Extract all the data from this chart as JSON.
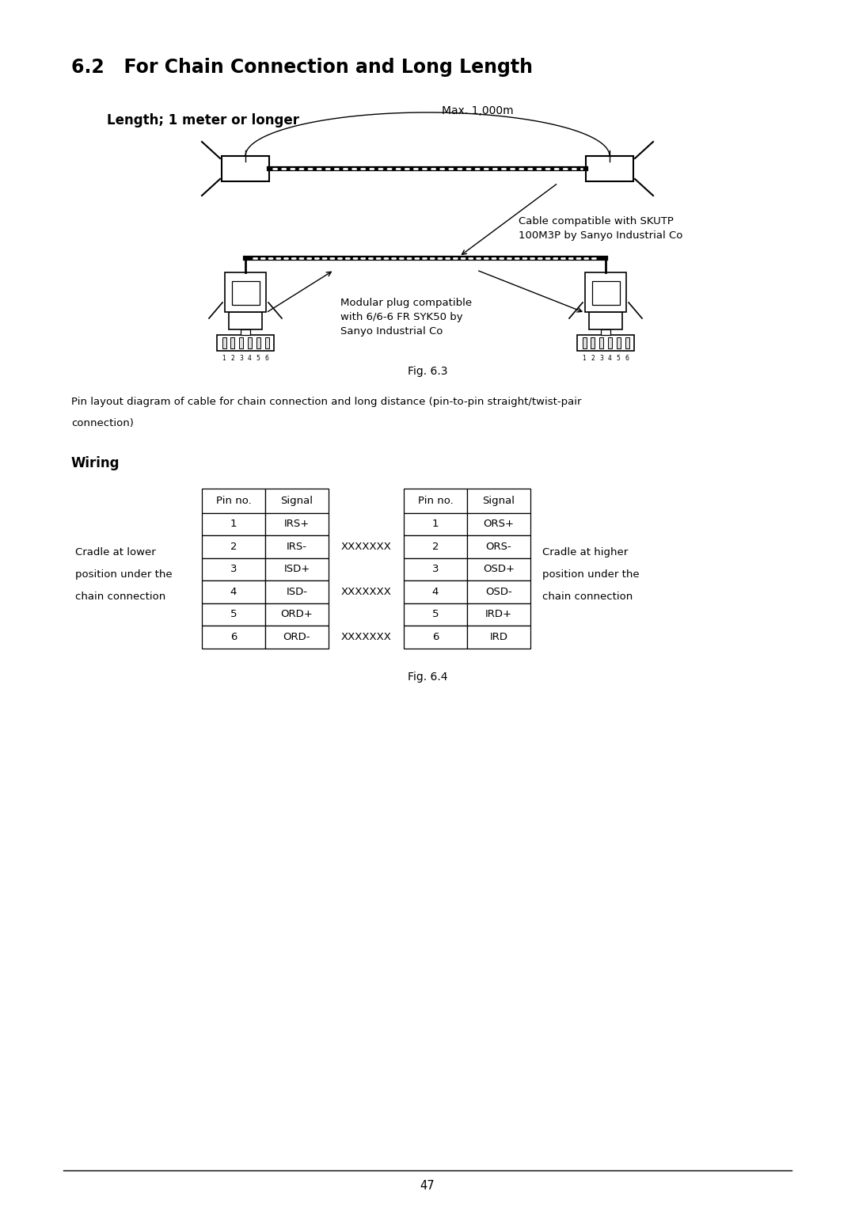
{
  "title": "6.2   For Chain Connection and Long Length",
  "subtitle": "Length; 1 meter or longer",
  "fig_caption1": "Fig. 6.3",
  "fig_caption2": "Fig. 6.4",
  "page_number": "47",
  "max_distance_label": "Max. 1,000m",
  "cable_label_line1": "Cable compatible with SKUTP",
  "cable_label_line2": "100M3P by Sanyo Industrial Co",
  "modular_label_line1": "Modular plug compatible",
  "modular_label_line2": "with 6/6-6 FR SYK50 by",
  "modular_label_line3": "Sanyo Industrial Co",
  "pin_desc_line1": "Pin layout diagram of cable for chain connection and long distance (pin-to-pin straight/twist-pair",
  "pin_desc_line2": "connection)",
  "wiring_title": "Wiring",
  "cradle_lower_line1": "Cradle at lower",
  "cradle_lower_line2": "position under the",
  "cradle_lower_line3": "chain connection",
  "cradle_higher_line1": "Cradle at higher",
  "cradle_higher_line2": "position under the",
  "cradle_higher_line3": "chain connection",
  "left_table_header": [
    "Pin no.",
    "Signal"
  ],
  "left_table_rows": [
    [
      "1",
      "IRS+"
    ],
    [
      "2",
      "IRS-"
    ],
    [
      "3",
      "ISD+"
    ],
    [
      "4",
      "ISD-"
    ],
    [
      "5",
      "ORD+"
    ],
    [
      "6",
      "ORD-"
    ]
  ],
  "right_table_header": [
    "Pin no.",
    "Signal"
  ],
  "right_table_rows": [
    [
      "1",
      "ORS+"
    ],
    [
      "2",
      "ORS-"
    ],
    [
      "3",
      "OSD+"
    ],
    [
      "4",
      "OSD-"
    ],
    [
      "5",
      "IRD+"
    ],
    [
      "6",
      "IRD"
    ]
  ],
  "wire_label": "XXXXXXX",
  "background_color": "#ffffff",
  "text_color": "#000000"
}
